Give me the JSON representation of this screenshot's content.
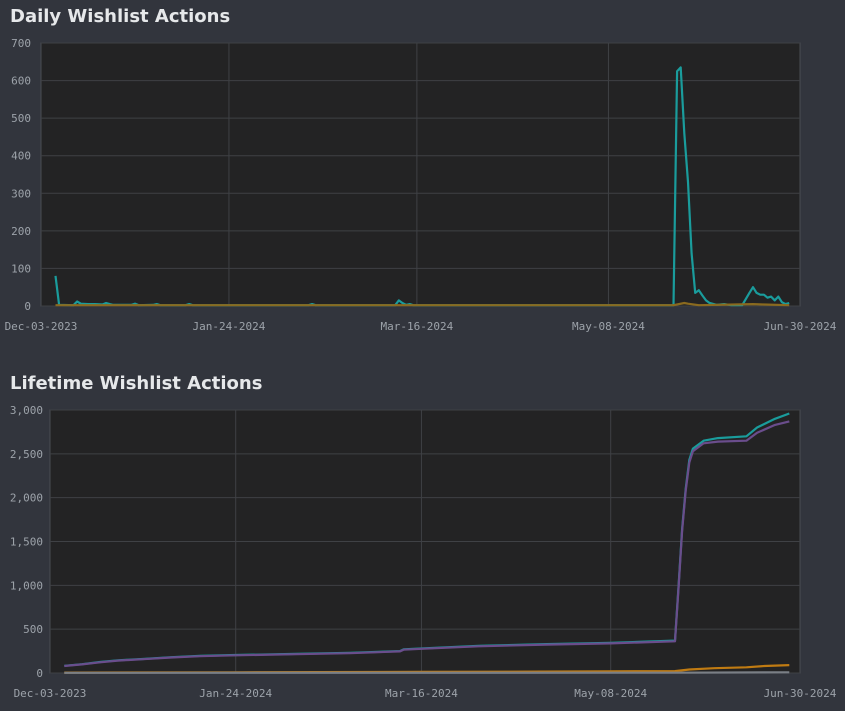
{
  "charts": [
    {
      "title": "Daily Wishlist Actions",
      "chart_data": {
        "type": "line",
        "title": "Daily Wishlist Actions",
        "xlabel": "",
        "ylabel": "",
        "ylim": [
          0,
          700
        ],
        "y_ticks": [
          0,
          100,
          200,
          300,
          400,
          500,
          600,
          700
        ],
        "y_tick_labels": [
          "0",
          "100",
          "200",
          "300",
          "400",
          "500",
          "600",
          "700"
        ],
        "x_ticks": [
          "2023-12-03",
          "2024-01-24",
          "2024-03-16",
          "2024-05-08",
          "2024-06-30"
        ],
        "x_tick_labels": [
          "Dec-03-2023",
          "Jan-24-2024",
          "Mar-16-2024",
          "May-08-2024",
          "Jun-30-2024"
        ],
        "xlim": [
          "2023-12-03",
          "2024-06-30"
        ],
        "grid": true,
        "series": [
          {
            "color": "#1a9c9c",
            "points": [
              [
                "2023-12-07",
                80
              ],
              [
                "2023-12-08",
                3
              ],
              [
                "2023-12-12",
                2
              ],
              [
                "2023-12-13",
                12
              ],
              [
                "2023-12-14",
                6
              ],
              [
                "2023-12-16",
                5
              ],
              [
                "2023-12-18",
                5
              ],
              [
                "2023-12-20",
                4
              ],
              [
                "2023-12-21",
                8
              ],
              [
                "2023-12-22",
                5
              ],
              [
                "2023-12-23",
                3
              ],
              [
                "2023-12-28",
                3
              ],
              [
                "2023-12-29",
                6
              ],
              [
                "2023-12-30",
                2
              ],
              [
                "2024-01-03",
                3
              ],
              [
                "2024-01-04",
                5
              ],
              [
                "2024-01-05",
                2
              ],
              [
                "2024-01-12",
                2
              ],
              [
                "2024-01-13",
                5
              ],
              [
                "2024-01-14",
                2
              ],
              [
                "2024-02-15",
                2
              ],
              [
                "2024-02-16",
                5
              ],
              [
                "2024-02-17",
                2
              ],
              [
                "2024-03-10",
                2
              ],
              [
                "2024-03-11",
                15
              ],
              [
                "2024-03-12",
                8
              ],
              [
                "2024-03-13",
                3
              ],
              [
                "2024-03-14",
                5
              ],
              [
                "2024-03-15",
                2
              ],
              [
                "2024-05-26",
                2
              ],
              [
                "2024-05-27",
                625
              ],
              [
                "2024-05-28",
                635
              ],
              [
                "2024-05-29",
                460
              ],
              [
                "2024-05-30",
                330
              ],
              [
                "2024-05-31",
                140
              ],
              [
                "2024-06-01",
                35
              ],
              [
                "2024-06-02",
                42
              ],
              [
                "2024-06-03",
                28
              ],
              [
                "2024-06-04",
                15
              ],
              [
                "2024-06-05",
                8
              ],
              [
                "2024-06-07",
                3
              ],
              [
                "2024-06-09",
                5
              ],
              [
                "2024-06-11",
                2
              ],
              [
                "2024-06-14",
                2
              ],
              [
                "2024-06-16",
                35
              ],
              [
                "2024-06-17",
                50
              ],
              [
                "2024-06-18",
                35
              ],
              [
                "2024-06-19",
                30
              ],
              [
                "2024-06-20",
                30
              ],
              [
                "2024-06-21",
                22
              ],
              [
                "2024-06-22",
                25
              ],
              [
                "2024-06-23",
                15
              ],
              [
                "2024-06-24",
                25
              ],
              [
                "2024-06-25",
                10
              ],
              [
                "2024-06-26",
                5
              ],
              [
                "2024-06-27",
                8
              ]
            ]
          },
          {
            "color": "#8a6a1f",
            "points": [
              [
                "2023-12-07",
                2
              ],
              [
                "2024-05-26",
                2
              ],
              [
                "2024-05-29",
                8
              ],
              [
                "2024-05-30",
                6
              ],
              [
                "2024-06-02",
                2
              ],
              [
                "2024-06-17",
                5
              ],
              [
                "2024-06-20",
                4
              ],
              [
                "2024-06-27",
                2
              ]
            ]
          }
        ]
      }
    },
    {
      "title": "Lifetime Wishlist Actions",
      "chart_data": {
        "type": "line",
        "title": "Lifetime Wishlist Actions",
        "xlabel": "",
        "ylabel": "",
        "ylim": [
          0,
          3000
        ],
        "y_ticks": [
          0,
          500,
          1000,
          1500,
          2000,
          2500,
          3000
        ],
        "y_tick_labels": [
          "0",
          "500",
          "1,000",
          "1,500",
          "2,000",
          "2,500",
          "3,000"
        ],
        "x_ticks": [
          "2023-12-03",
          "2024-01-24",
          "2024-03-16",
          "2024-05-08",
          "2024-06-30"
        ],
        "x_tick_labels": [
          "Dec-03-2023",
          "Jan-24-2024",
          "Mar-16-2024",
          "May-08-2024",
          "Jun-30-2024"
        ],
        "xlim": [
          "2023-12-03",
          "2024-06-30"
        ],
        "grid": true,
        "series": [
          {
            "color": "#1a9c9c",
            "points": [
              [
                "2023-12-07",
                82
              ],
              [
                "2023-12-12",
                100
              ],
              [
                "2023-12-17",
                125
              ],
              [
                "2023-12-22",
                145
              ],
              [
                "2023-12-29",
                160
              ],
              [
                "2024-01-06",
                180
              ],
              [
                "2024-01-14",
                195
              ],
              [
                "2024-01-24",
                205
              ],
              [
                "2024-02-10",
                218
              ],
              [
                "2024-02-25",
                230
              ],
              [
                "2024-03-10",
                250
              ],
              [
                "2024-03-11",
                270
              ],
              [
                "2024-03-16",
                280
              ],
              [
                "2024-04-01",
                310
              ],
              [
                "2024-04-20",
                330
              ],
              [
                "2024-05-08",
                345
              ],
              [
                "2024-05-26",
                370
              ],
              [
                "2024-05-27",
                1000
              ],
              [
                "2024-05-28",
                1640
              ],
              [
                "2024-05-29",
                2100
              ],
              [
                "2024-05-30",
                2430
              ],
              [
                "2024-05-31",
                2560
              ],
              [
                "2024-06-03",
                2650
              ],
              [
                "2024-06-07",
                2680
              ],
              [
                "2024-06-15",
                2700
              ],
              [
                "2024-06-18",
                2800
              ],
              [
                "2024-06-23",
                2900
              ],
              [
                "2024-06-27",
                2960
              ]
            ]
          },
          {
            "color": "#6a4d8c",
            "points": [
              [
                "2023-12-07",
                80
              ],
              [
                "2023-12-12",
                98
              ],
              [
                "2023-12-17",
                122
              ],
              [
                "2023-12-22",
                142
              ],
              [
                "2023-12-29",
                157
              ],
              [
                "2024-01-06",
                177
              ],
              [
                "2024-01-14",
                192
              ],
              [
                "2024-01-24",
                202
              ],
              [
                "2024-02-10",
                214
              ],
              [
                "2024-02-25",
                226
              ],
              [
                "2024-03-10",
                246
              ],
              [
                "2024-03-11",
                266
              ],
              [
                "2024-03-16",
                276
              ],
              [
                "2024-04-01",
                305
              ],
              [
                "2024-04-20",
                324
              ],
              [
                "2024-05-08",
                338
              ],
              [
                "2024-05-26",
                362
              ],
              [
                "2024-05-27",
                980
              ],
              [
                "2024-05-28",
                1620
              ],
              [
                "2024-05-29",
                2080
              ],
              [
                "2024-05-30",
                2400
              ],
              [
                "2024-05-31",
                2530
              ],
              [
                "2024-06-03",
                2620
              ],
              [
                "2024-06-07",
                2640
              ],
              [
                "2024-06-15",
                2650
              ],
              [
                "2024-06-18",
                2740
              ],
              [
                "2024-06-23",
                2830
              ],
              [
                "2024-06-27",
                2870
              ]
            ]
          },
          {
            "color": "#c07b12",
            "points": [
              [
                "2023-12-07",
                5
              ],
              [
                "2024-01-24",
                8
              ],
              [
                "2024-03-16",
                12
              ],
              [
                "2024-05-08",
                18
              ],
              [
                "2024-05-26",
                22
              ],
              [
                "2024-05-30",
                40
              ],
              [
                "2024-06-06",
                55
              ],
              [
                "2024-06-15",
                65
              ],
              [
                "2024-06-20",
                80
              ],
              [
                "2024-06-27",
                90
              ]
            ]
          },
          {
            "color": "#7a7f86",
            "points": [
              [
                "2023-12-07",
                2
              ],
              [
                "2024-05-26",
                3
              ],
              [
                "2024-06-27",
                8
              ]
            ]
          }
        ]
      }
    }
  ]
}
